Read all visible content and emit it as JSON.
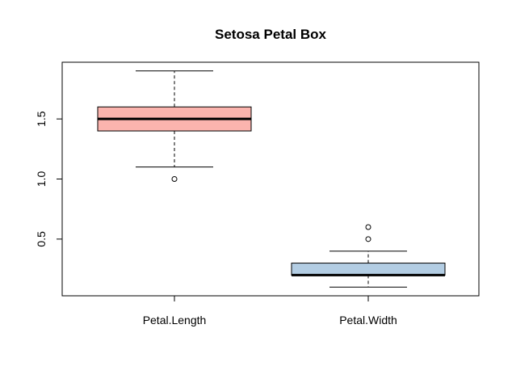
{
  "chart_data": {
    "type": "boxplot",
    "title": "Setosa Petal Box",
    "xlabel": "",
    "ylabel": "",
    "categories": [
      "Petal.Length",
      "Petal.Width"
    ],
    "boxes": [
      {
        "name": "Petal.Length",
        "whisker_low": 1.1,
        "q1": 1.4,
        "median": 1.5,
        "q3": 1.6,
        "whisker_high": 1.9,
        "outliers": [
          1.0
        ],
        "color": "#FBB4AE"
      },
      {
        "name": "Petal.Width",
        "whisker_low": 0.1,
        "q1": 0.2,
        "median": 0.2,
        "q3": 0.3,
        "whisker_high": 0.4,
        "outliers": [
          0.5,
          0.6
        ],
        "color": "#B3CDE3"
      }
    ],
    "y_ticks": [
      0.5,
      1.0,
      1.5
    ],
    "y_tick_labels": [
      "0.5",
      "1.0",
      "1.5"
    ],
    "ylim": [
      0.028,
      1.972
    ],
    "grid": false
  }
}
